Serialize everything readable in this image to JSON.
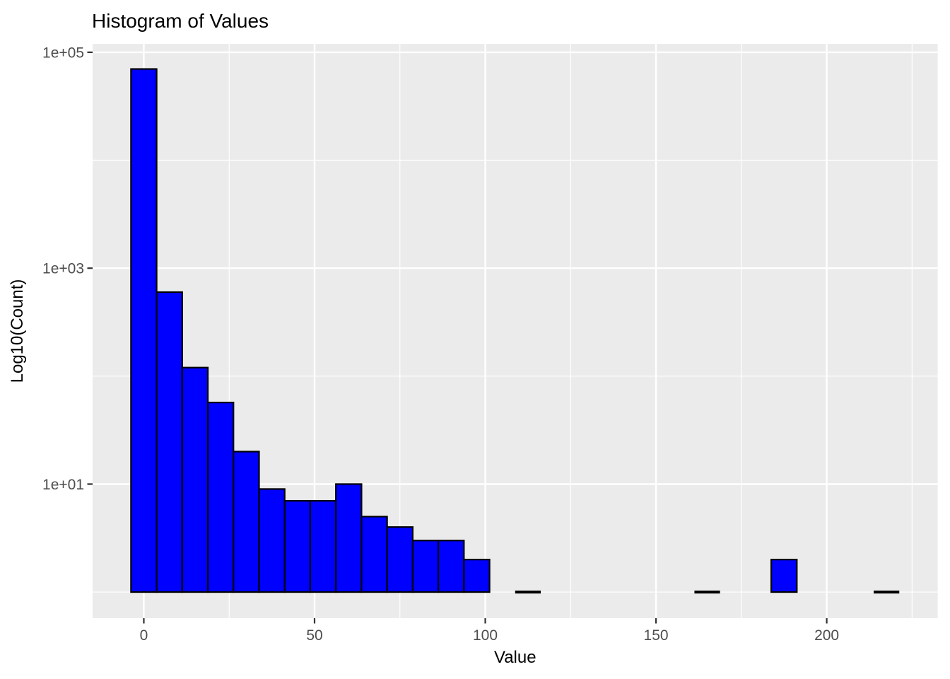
{
  "chart_data": {
    "type": "bar",
    "subtype": "histogram",
    "title": "Histogram of Values",
    "xlabel": "Value",
    "ylabel": "Log10(Count)",
    "y_scale": "log10",
    "grid": "on",
    "legend": "none",
    "xlim": [
      -15,
      232.5
    ],
    "ylim_log10": [
      -0.242,
      5.078
    ],
    "x_major_ticks": [
      0,
      50,
      100,
      150,
      200
    ],
    "x_minor_ticks": [
      25,
      75,
      125,
      175,
      225
    ],
    "y_major_ticks": [
      {
        "value": 10,
        "label": "1e+01"
      },
      {
        "value": 1000,
        "label": "1e+03"
      },
      {
        "value": 100000,
        "label": "1e+05"
      }
    ],
    "y_minor_ticks": [
      1,
      100,
      10000
    ],
    "bin_width": 7.5,
    "bins": [
      {
        "center": 0,
        "count": 70000
      },
      {
        "center": 7.5,
        "count": 600
      },
      {
        "center": 15,
        "count": 120
      },
      {
        "center": 22.5,
        "count": 57
      },
      {
        "center": 30,
        "count": 20
      },
      {
        "center": 37.5,
        "count": 9
      },
      {
        "center": 45,
        "count": 7
      },
      {
        "center": 52.5,
        "count": 7
      },
      {
        "center": 60,
        "count": 10
      },
      {
        "center": 67.5,
        "count": 5
      },
      {
        "center": 75,
        "count": 4
      },
      {
        "center": 82.5,
        "count": 3
      },
      {
        "center": 90,
        "count": 3
      },
      {
        "center": 97.5,
        "count": 2
      },
      {
        "center": 112.5,
        "count": 1
      },
      {
        "center": 165,
        "count": 1
      },
      {
        "center": 187.5,
        "count": 2
      },
      {
        "center": 217.5,
        "count": 1
      }
    ],
    "colors": {
      "background": "#FFFFFF",
      "panel_bg": "#EBEBEB",
      "grid": "#FFFFFF",
      "bar_fill": "#0000FF",
      "bar_stroke": "#000000",
      "tick_mark": "#333333",
      "tick_text": "#4D4D4D",
      "title_text": "#000000"
    }
  }
}
